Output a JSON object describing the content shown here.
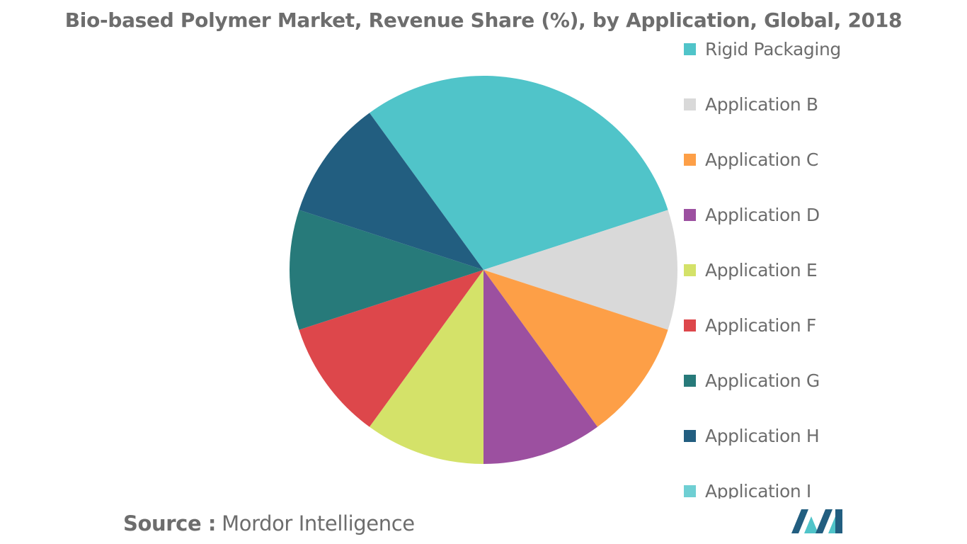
{
  "chart_data": {
    "type": "pie",
    "title": "Bio-based Polymer Market, Revenue Share (%), by Application, Global, 2018",
    "categories": [
      "Rigid Packaging",
      "Application B",
      "Application C",
      "Application D",
      "Application E",
      "Application F",
      "Application G",
      "Application H",
      "Application I"
    ],
    "values": [
      30,
      10,
      10,
      10,
      10,
      10,
      10,
      10,
      0
    ],
    "colors": [
      "#50c4c9",
      "#d9d9d9",
      "#fd9f47",
      "#9c50a0",
      "#d4e269",
      "#dd474b",
      "#277a7a",
      "#225e80",
      "#6fcfd3"
    ],
    "legend_position": "right",
    "grid": false
  },
  "footer": {
    "source_prefix": "Source :",
    "source_text": "Mordor Intelligence",
    "logo_icon": "mordor-intelligence-logo"
  }
}
